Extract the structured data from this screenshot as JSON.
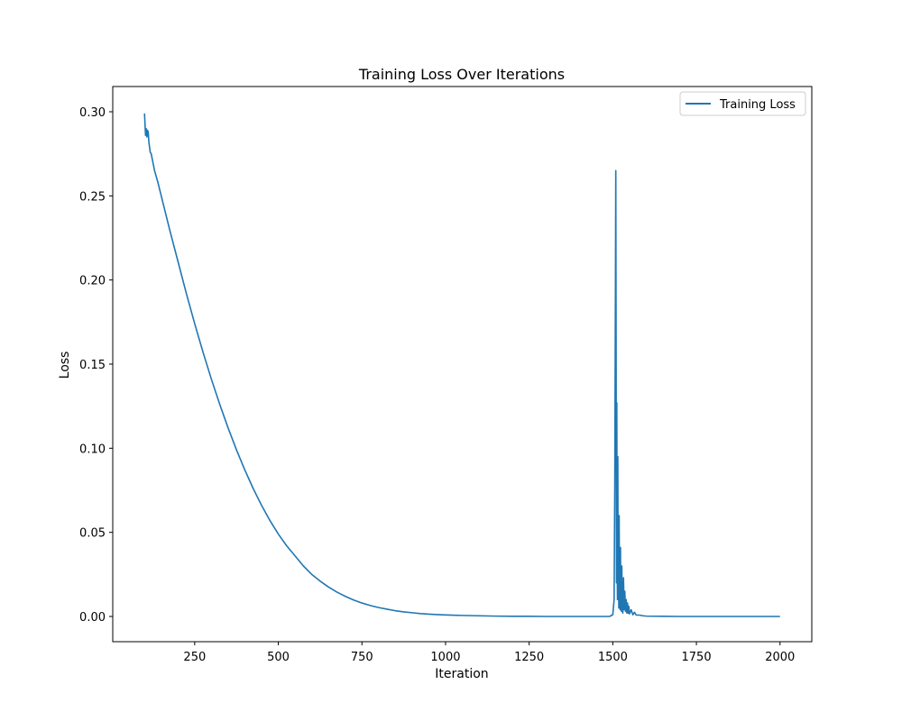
{
  "chart_data": {
    "type": "line",
    "title": "Training Loss Over Iterations",
    "xlabel": "Iteration",
    "ylabel": "Loss",
    "xlim": [
      5,
      2095
    ],
    "ylim": [
      -0.015,
      0.315
    ],
    "xticks": [
      250,
      500,
      750,
      1000,
      1250,
      1500,
      1750,
      2000
    ],
    "xtick_labels": [
      "250",
      "500",
      "750",
      "1000",
      "1250",
      "1500",
      "1750",
      "2000"
    ],
    "yticks": [
      0.0,
      0.05,
      0.1,
      0.15,
      0.2,
      0.25,
      0.3
    ],
    "ytick_labels": [
      "0.00",
      "0.05",
      "0.10",
      "0.15",
      "0.20",
      "0.25",
      "0.30"
    ],
    "grid": false,
    "legend": {
      "placement": "top-right",
      "entries": [
        "Training Loss"
      ]
    },
    "series": [
      {
        "name": "Training Loss",
        "color": "#1f77b4",
        "x": [
          100,
          103,
          105,
          107,
          109,
          111,
          113,
          115,
          117,
          120,
          125,
          130,
          140,
          150,
          175,
          200,
          225,
          250,
          275,
          300,
          325,
          350,
          375,
          400,
          425,
          450,
          475,
          500,
          525,
          550,
          575,
          600,
          625,
          650,
          675,
          700,
          725,
          750,
          775,
          800,
          825,
          850,
          875,
          900,
          925,
          950,
          975,
          1000,
          1050,
          1100,
          1150,
          1200,
          1250,
          1300,
          1350,
          1400,
          1450,
          1490,
          1500,
          1504,
          1506,
          1508,
          1509,
          1510,
          1511,
          1512,
          1513,
          1514,
          1515,
          1516,
          1517,
          1518,
          1519,
          1520,
          1521,
          1522,
          1523,
          1524,
          1525,
          1526,
          1527,
          1528,
          1529,
          1530,
          1532,
          1534,
          1536,
          1538,
          1540,
          1542,
          1544,
          1546,
          1548,
          1550,
          1555,
          1560,
          1565,
          1570,
          1580,
          1590,
          1600,
          1650,
          1700,
          1750,
          1800,
          1850,
          1900,
          1950,
          2000
        ],
        "y": [
          0.299,
          0.286,
          0.29,
          0.285,
          0.289,
          0.288,
          0.282,
          0.279,
          0.276,
          0.275,
          0.27,
          0.265,
          0.258,
          0.25,
          0.23,
          0.211,
          0.192,
          0.174,
          0.157,
          0.141,
          0.126,
          0.112,
          0.099,
          0.087,
          0.076,
          0.066,
          0.057,
          0.049,
          0.042,
          0.036,
          0.03,
          0.025,
          0.021,
          0.0175,
          0.0145,
          0.012,
          0.0098,
          0.008,
          0.0065,
          0.0053,
          0.0043,
          0.0034,
          0.0027,
          0.0022,
          0.0017,
          0.0014,
          0.0011,
          0.0009,
          0.0006,
          0.0004,
          0.0002,
          0.0001,
          0.0001,
          0.0,
          0.0,
          0.0,
          0.0,
          0.0,
          0.001,
          0.01,
          0.08,
          0.2,
          0.265,
          0.15,
          0.02,
          0.127,
          0.03,
          0.01,
          0.095,
          0.015,
          0.04,
          0.005,
          0.06,
          0.01,
          0.03,
          0.004,
          0.041,
          0.006,
          0.018,
          0.003,
          0.03,
          0.005,
          0.012,
          0.002,
          0.023,
          0.004,
          0.015,
          0.003,
          0.01,
          0.002,
          0.008,
          0.002,
          0.006,
          0.0015,
          0.004,
          0.001,
          0.0025,
          0.0008,
          0.0008,
          0.0004,
          0.0002,
          0.0001,
          0.0,
          0.0,
          0.0,
          0.0,
          0.0,
          0.0,
          0.0
        ]
      }
    ]
  }
}
